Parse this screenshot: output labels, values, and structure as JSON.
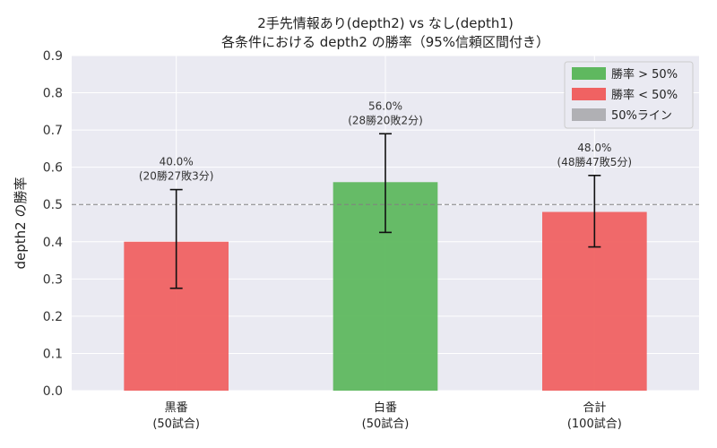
{
  "chart_data": {
    "type": "bar",
    "title": "2手先情報あり(depth2) vs なし(depth1)",
    "subtitle": "各条件における depth2 の勝率（95%信頼区間付き）",
    "xlabel": "",
    "ylabel": "depth2 の勝率",
    "ylim": [
      0,
      0.9
    ],
    "yticks": [
      "0.0",
      "0.1",
      "0.2",
      "0.3",
      "0.4",
      "0.5",
      "0.6",
      "0.7",
      "0.8",
      "0.9"
    ],
    "grid": true,
    "reference_line": {
      "value": 0.5,
      "style": "dashed",
      "color": "#808080"
    },
    "categories": [
      {
        "name": "黒番",
        "sub": "(50試合)"
      },
      {
        "name": "白番",
        "sub": "(50試合)"
      },
      {
        "name": "合計",
        "sub": "(100試合)"
      }
    ],
    "values": [
      0.4,
      0.56,
      0.48
    ],
    "ci_lower": [
      0.275,
      0.425,
      0.386
    ],
    "ci_upper": [
      0.54,
      0.69,
      0.578
    ],
    "labels": [
      {
        "pct": "40.0%",
        "record": "(20勝27敗3分)"
      },
      {
        "pct": "56.0%",
        "record": "(28勝20敗2分)"
      },
      {
        "pct": "48.0%",
        "record": "(48勝47敗5分)"
      }
    ],
    "bar_colors": [
      "#f06262",
      "#5fb85f",
      "#f06262"
    ],
    "legend": {
      "placement": "top-right",
      "entries": [
        {
          "label": "勝率 > 50%",
          "color": "#5fb85f"
        },
        {
          "label": "勝率 < 50%",
          "color": "#f06262"
        },
        {
          "label": "50%ライン",
          "color": "#b0b0b4"
        }
      ]
    }
  }
}
